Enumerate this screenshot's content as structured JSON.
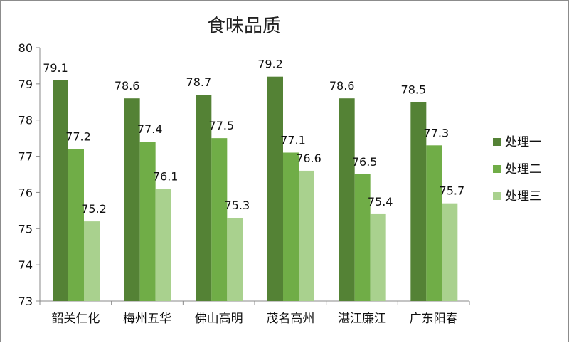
{
  "chart_data": {
    "type": "bar",
    "title": "食味品质",
    "categories": [
      "韶关仁化",
      "梅州五华",
      "佛山高明",
      "茂名高州",
      "湛江廉江",
      "广东阳春"
    ],
    "series": [
      {
        "name": "处理一",
        "values": [
          79.1,
          78.6,
          78.7,
          79.2,
          78.6,
          78.5
        ],
        "color": "#548235"
      },
      {
        "name": "处理二",
        "values": [
          77.2,
          77.4,
          77.5,
          77.1,
          76.5,
          77.3
        ],
        "color": "#70ad47"
      },
      {
        "name": "处理三",
        "values": [
          75.2,
          76.1,
          75.3,
          76.6,
          75.4,
          75.7
        ],
        "color": "#a9d18e"
      }
    ],
    "xlabel": "",
    "ylabel": "",
    "ylim": [
      73,
      80
    ],
    "yticks": [
      73,
      74,
      75,
      76,
      77,
      78,
      79,
      80
    ],
    "grid": false,
    "legend": "right"
  }
}
